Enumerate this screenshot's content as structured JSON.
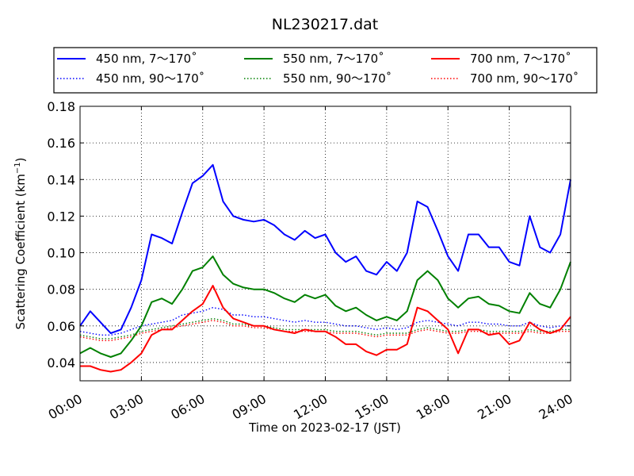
{
  "chart_data": {
    "type": "line",
    "title": "NL230217.dat",
    "xlabel": "Time on 2023-02-17 (JST)",
    "ylabel_main": "Scattering Coefficient (km",
    "ylabel_sup": "−1",
    "ylabel_close": ")",
    "xlim": [
      0,
      24
    ],
    "ylim": [
      0.03,
      0.18
    ],
    "x_ticks": [
      0,
      3,
      6,
      9,
      12,
      15,
      18,
      21,
      24
    ],
    "x_tick_labels": [
      "00:00",
      "03:00",
      "06:00",
      "09:00",
      "12:00",
      "15:00",
      "18:00",
      "21:00",
      "24:00"
    ],
    "y_ticks": [
      0.04,
      0.06,
      0.08,
      0.1,
      0.12,
      0.14,
      0.16,
      0.18
    ],
    "y_tick_labels": [
      "0.04",
      "0.06",
      "0.08",
      "0.10",
      "0.12",
      "0.14",
      "0.16",
      "0.18"
    ],
    "grid": true,
    "legend_position": "top, above plot, 3 columns",
    "x": [
      0,
      0.5,
      1,
      1.5,
      2,
      2.5,
      3,
      3.5,
      4,
      4.5,
      5,
      5.5,
      6,
      6.5,
      7,
      7.5,
      8,
      8.5,
      9,
      9.5,
      10,
      10.5,
      11,
      11.5,
      12,
      12.5,
      13,
      13.5,
      14,
      14.5,
      15,
      15.5,
      16,
      16.5,
      17,
      17.5,
      18,
      18.5,
      19,
      19.5,
      20,
      20.5,
      21,
      21.5,
      22,
      22.5,
      23,
      23.5,
      24
    ],
    "series": [
      {
        "name": "450 nm, 7～170˚",
        "color": "#0000ff",
        "style": "solid",
        "values": [
          0.06,
          0.068,
          0.062,
          0.056,
          0.058,
          0.07,
          0.085,
          0.11,
          0.108,
          0.105,
          0.122,
          0.138,
          0.142,
          0.148,
          0.128,
          0.12,
          0.118,
          0.117,
          0.118,
          0.115,
          0.11,
          0.107,
          0.112,
          0.108,
          0.11,
          0.1,
          0.095,
          0.098,
          0.09,
          0.088,
          0.095,
          0.09,
          0.1,
          0.128,
          0.125,
          0.112,
          0.098,
          0.09,
          0.11,
          0.11,
          0.103,
          0.103,
          0.095,
          0.093,
          0.12,
          0.103,
          0.1,
          0.11,
          0.14
        ]
      },
      {
        "name": "450 nm, 90～170˚",
        "color": "#0000ff",
        "style": "dotted",
        "values": [
          0.057,
          0.056,
          0.055,
          0.055,
          0.056,
          0.058,
          0.06,
          0.061,
          0.062,
          0.063,
          0.066,
          0.067,
          0.068,
          0.07,
          0.069,
          0.066,
          0.066,
          0.065,
          0.065,
          0.064,
          0.063,
          0.062,
          0.063,
          0.062,
          0.062,
          0.061,
          0.06,
          0.06,
          0.059,
          0.058,
          0.059,
          0.058,
          0.059,
          0.062,
          0.063,
          0.062,
          0.061,
          0.06,
          0.062,
          0.062,
          0.061,
          0.061,
          0.06,
          0.06,
          0.062,
          0.06,
          0.059,
          0.06,
          0.06
        ]
      },
      {
        "name": "550 nm, 7～170˚",
        "color": "#008000",
        "style": "solid",
        "values": [
          0.045,
          0.048,
          0.045,
          0.043,
          0.045,
          0.052,
          0.06,
          0.073,
          0.075,
          0.072,
          0.08,
          0.09,
          0.092,
          0.098,
          0.088,
          0.083,
          0.081,
          0.08,
          0.08,
          0.078,
          0.075,
          0.073,
          0.077,
          0.075,
          0.077,
          0.071,
          0.068,
          0.07,
          0.066,
          0.063,
          0.065,
          0.063,
          0.068,
          0.085,
          0.09,
          0.085,
          0.075,
          0.07,
          0.075,
          0.076,
          0.072,
          0.071,
          0.068,
          0.067,
          0.078,
          0.072,
          0.07,
          0.08,
          0.095
        ]
      },
      {
        "name": "550 nm, 90～170˚",
        "color": "#008000",
        "style": "dotted",
        "values": [
          0.055,
          0.054,
          0.053,
          0.053,
          0.054,
          0.055,
          0.057,
          0.058,
          0.059,
          0.06,
          0.061,
          0.062,
          0.063,
          0.064,
          0.063,
          0.061,
          0.061,
          0.06,
          0.06,
          0.059,
          0.058,
          0.058,
          0.058,
          0.058,
          0.058,
          0.057,
          0.057,
          0.057,
          0.056,
          0.055,
          0.056,
          0.056,
          0.056,
          0.058,
          0.059,
          0.058,
          0.057,
          0.057,
          0.058,
          0.058,
          0.057,
          0.057,
          0.057,
          0.057,
          0.058,
          0.057,
          0.057,
          0.058,
          0.058
        ]
      },
      {
        "name": "700 nm, 7～170˚",
        "color": "#ff0000",
        "style": "solid",
        "values": [
          0.038,
          0.038,
          0.036,
          0.035,
          0.036,
          0.04,
          0.045,
          0.055,
          0.058,
          0.058,
          0.063,
          0.068,
          0.072,
          0.082,
          0.07,
          0.064,
          0.062,
          0.06,
          0.06,
          0.058,
          0.057,
          0.056,
          0.058,
          0.057,
          0.057,
          0.054,
          0.05,
          0.05,
          0.046,
          0.044,
          0.047,
          0.047,
          0.05,
          0.07,
          0.068,
          0.063,
          0.058,
          0.045,
          0.058,
          0.058,
          0.055,
          0.056,
          0.05,
          0.052,
          0.062,
          0.058,
          0.056,
          0.058,
          0.065
        ]
      },
      {
        "name": "700 nm, 90～170˚",
        "color": "#ff0000",
        "style": "dotted",
        "values": [
          0.054,
          0.053,
          0.052,
          0.052,
          0.053,
          0.054,
          0.056,
          0.057,
          0.058,
          0.059,
          0.06,
          0.061,
          0.062,
          0.063,
          0.062,
          0.06,
          0.06,
          0.059,
          0.059,
          0.058,
          0.057,
          0.057,
          0.057,
          0.057,
          0.057,
          0.056,
          0.056,
          0.056,
          0.055,
          0.054,
          0.055,
          0.055,
          0.055,
          0.057,
          0.058,
          0.057,
          0.056,
          0.056,
          0.057,
          0.057,
          0.056,
          0.056,
          0.056,
          0.056,
          0.057,
          0.056,
          0.056,
          0.057,
          0.057
        ]
      }
    ]
  }
}
